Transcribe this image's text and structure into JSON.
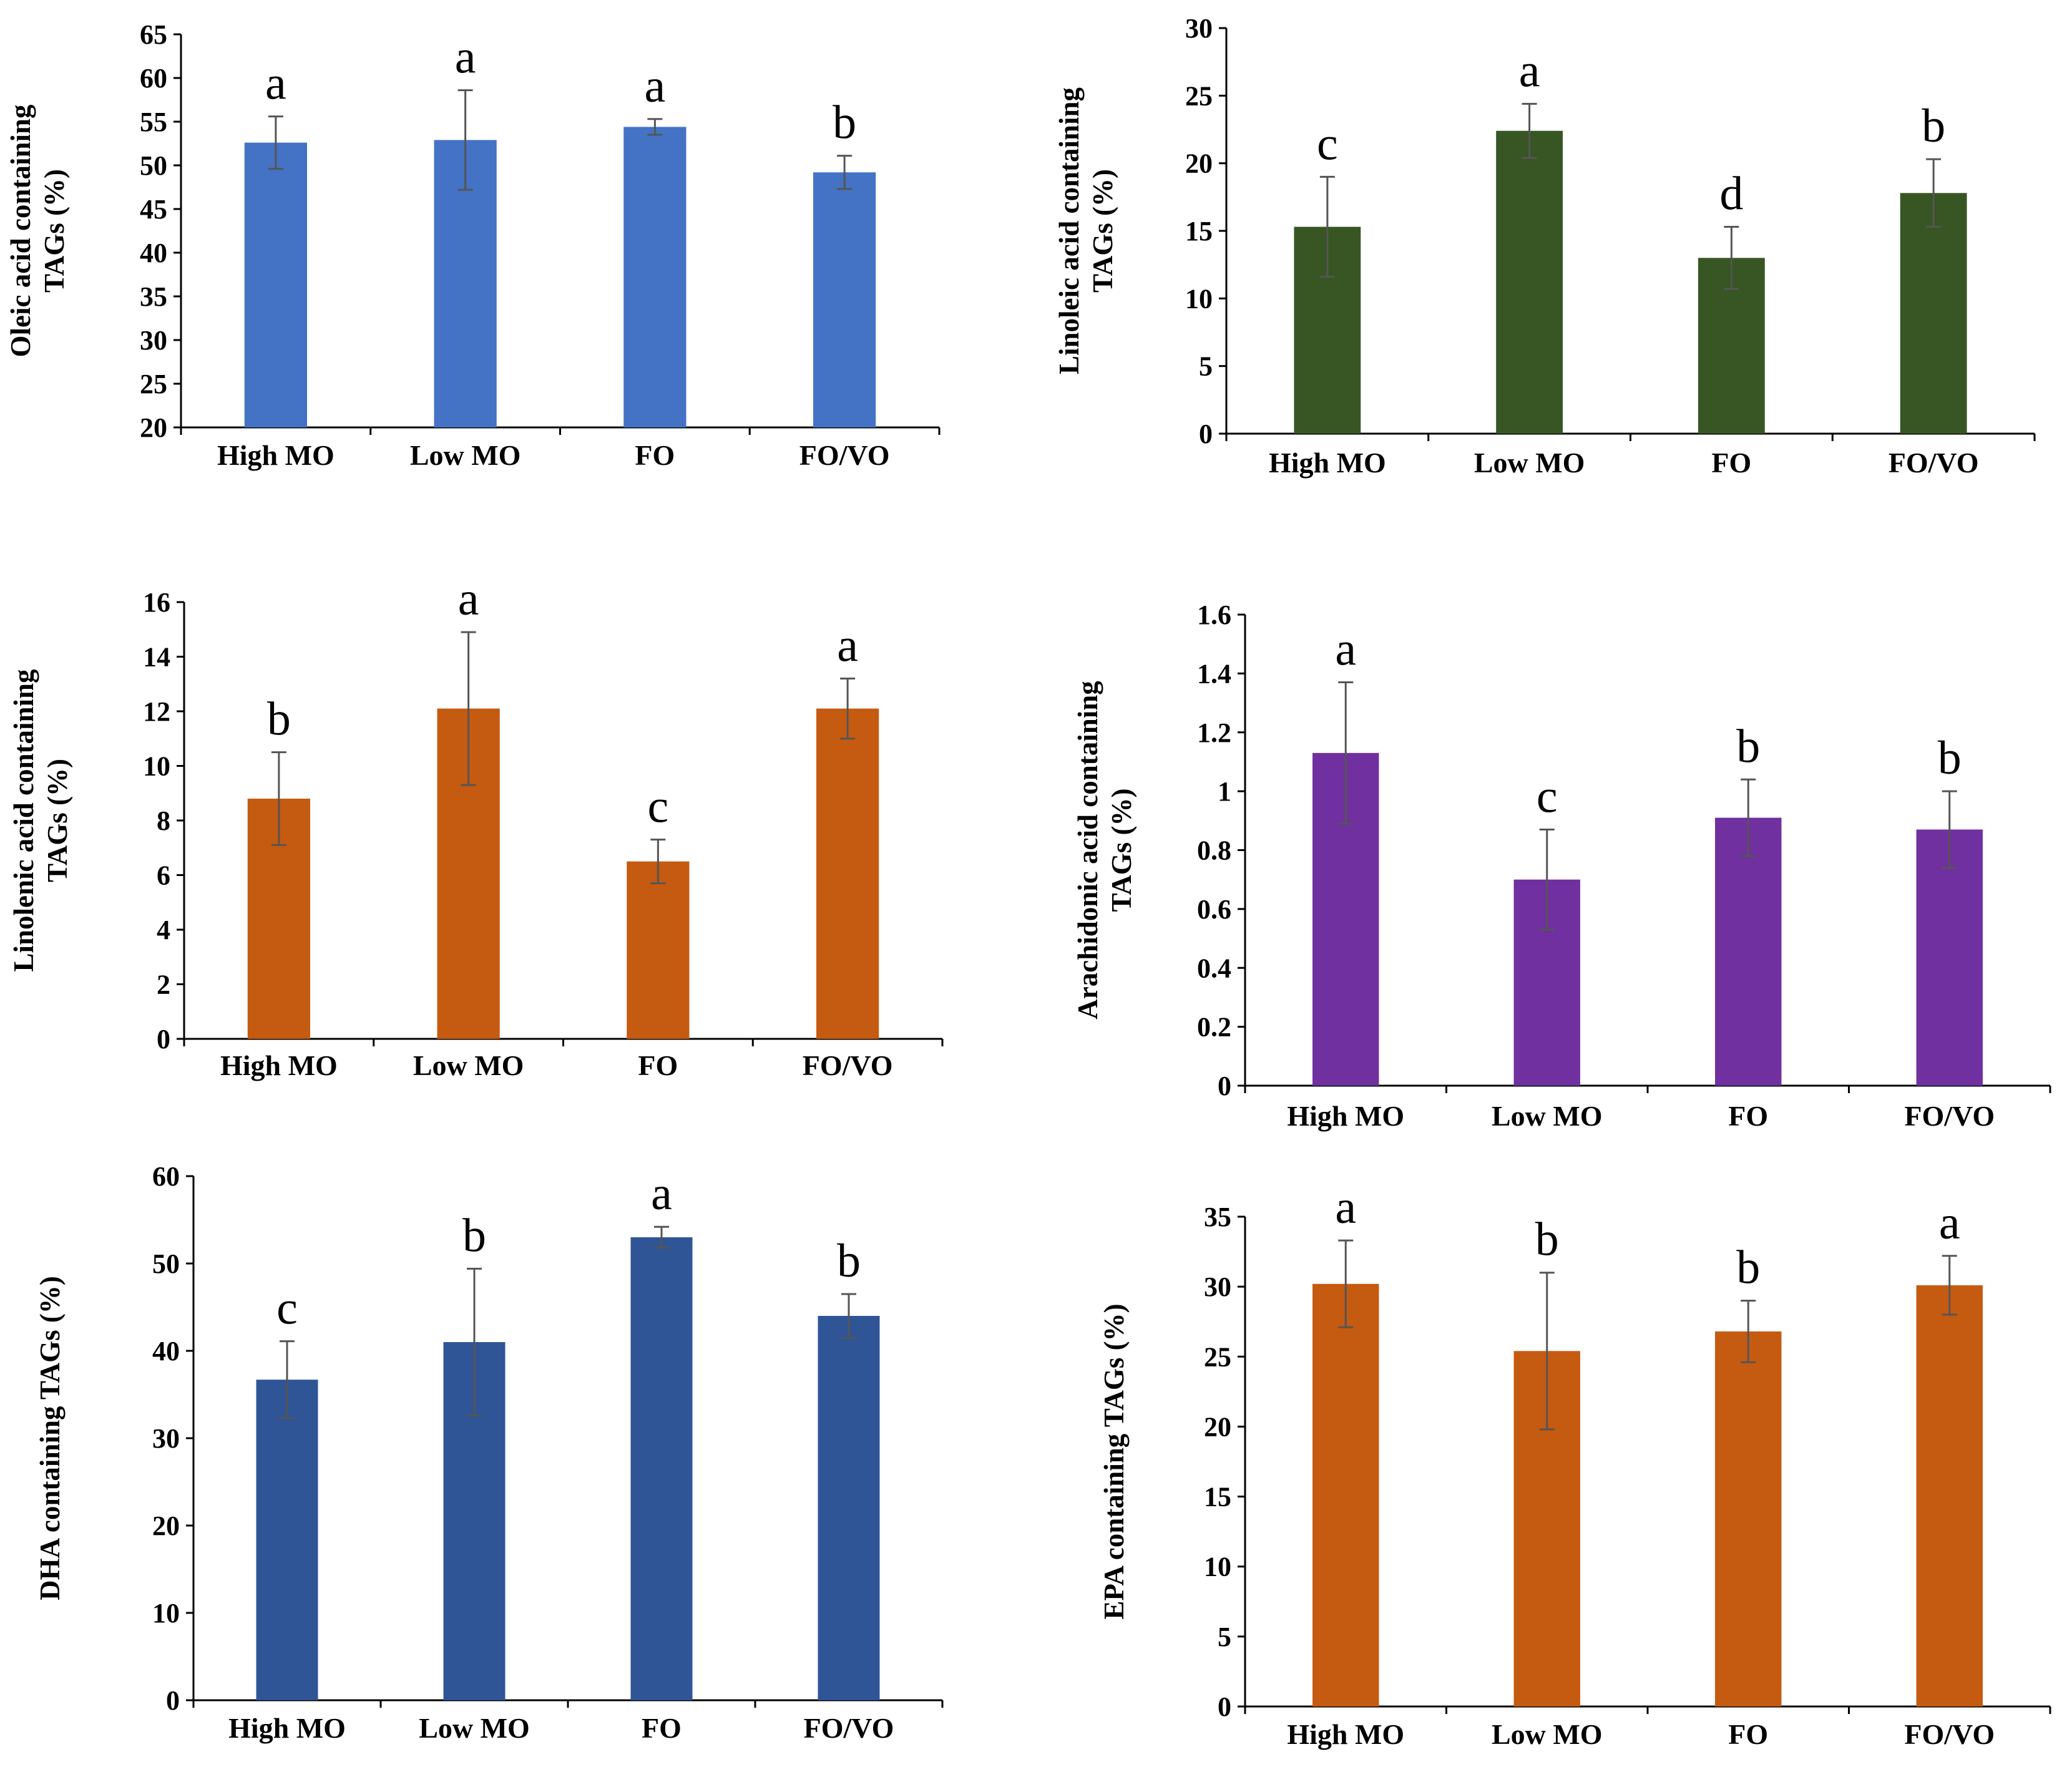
{
  "chart_data": [
    {
      "type": "bar",
      "title": "",
      "ylabel": [
        "Oleic acid containing",
        "TAGs (%)"
      ],
      "xlabel": "",
      "categories": [
        "High MO",
        "Low MO",
        "FO",
        "FO/VO"
      ],
      "values": [
        52.6,
        52.9,
        54.4,
        49.2
      ],
      "errors": [
        3.0,
        5.7,
        0.9,
        1.9
      ],
      "significance": [
        "a",
        "a",
        "a",
        "b"
      ],
      "ylim": [
        20,
        65
      ],
      "yticks": [
        "20",
        "25",
        "30",
        "35",
        "40",
        "45",
        "50",
        "55",
        "60",
        "65"
      ],
      "color": "#4472C4"
    },
    {
      "type": "bar",
      "title": "",
      "ylabel": [
        "Linoleic acid containing",
        "TAGs (%)"
      ],
      "xlabel": "",
      "categories": [
        "High MO",
        "Low MO",
        "FO",
        "FO/VO"
      ],
      "values": [
        15.3,
        22.4,
        13.0,
        17.8
      ],
      "errors": [
        3.7,
        2.0,
        2.3,
        2.5
      ],
      "significance": [
        "c",
        "a",
        "d",
        "b"
      ],
      "ylim": [
        0,
        30
      ],
      "yticks": [
        "0",
        "5",
        "10",
        "15",
        "20",
        "25",
        "30"
      ],
      "color": "#375623"
    },
    {
      "type": "bar",
      "title": "",
      "ylabel": [
        "Linolenic acid containing",
        "TAGs (%)"
      ],
      "xlabel": "",
      "categories": [
        "High MO",
        "Low MO",
        "FO",
        "FO/VO"
      ],
      "values": [
        8.8,
        12.1,
        6.5,
        12.1
      ],
      "errors": [
        1.7,
        2.8,
        0.8,
        1.1
      ],
      "significance": [
        "b",
        "a",
        "c",
        "a"
      ],
      "ylim": [
        0,
        16
      ],
      "yticks": [
        "0",
        "2",
        "4",
        "6",
        "8",
        "10",
        "12",
        "14",
        "16"
      ],
      "color": "#C55A11"
    },
    {
      "type": "bar",
      "title": "",
      "ylabel": [
        "Arachidonic acid containing",
        "TAGs (%)"
      ],
      "xlabel": "",
      "categories": [
        "High MO",
        "Low MO",
        "FO",
        "FO/VO"
      ],
      "values": [
        1.13,
        0.7,
        0.91,
        0.87
      ],
      "errors": [
        0.24,
        0.17,
        0.13,
        0.13
      ],
      "significance": [
        "a",
        "c",
        "b",
        "b"
      ],
      "ylim": [
        0,
        1.6
      ],
      "yticks": [
        "0",
        "0.2",
        "0.4",
        "0.6",
        "0.8",
        "1",
        "1.2",
        "1.4",
        "1.6"
      ],
      "color": "#7030A0"
    },
    {
      "type": "bar",
      "title": "",
      "ylabel": [
        "DHA containing TAGs (%)"
      ],
      "xlabel": "",
      "categories": [
        "High MO",
        "Low MO",
        "FO",
        "FO/VO"
      ],
      "values": [
        36.7,
        41.0,
        53.0,
        44.0
      ],
      "errors": [
        4.4,
        8.4,
        1.2,
        2.5
      ],
      "significance": [
        "c",
        "b",
        "a",
        "b"
      ],
      "ylim": [
        0,
        60
      ],
      "yticks": [
        "0",
        "10",
        "20",
        "30",
        "40",
        "50",
        "60"
      ],
      "color": "#2F5597"
    },
    {
      "type": "bar",
      "title": "",
      "ylabel": [
        "EPA containing TAGs (%)"
      ],
      "xlabel": "",
      "categories": [
        "High MO",
        "Low MO",
        "FO",
        "FO/VO"
      ],
      "values": [
        30.2,
        25.4,
        26.8,
        30.1
      ],
      "errors": [
        3.1,
        5.6,
        2.2,
        2.1
      ],
      "significance": [
        "a",
        "b",
        "b",
        "a"
      ],
      "ylim": [
        0,
        35
      ],
      "yticks": [
        "0",
        "5",
        "10",
        "15",
        "20",
        "25",
        "30",
        "35"
      ],
      "color": "#C55A11"
    }
  ]
}
